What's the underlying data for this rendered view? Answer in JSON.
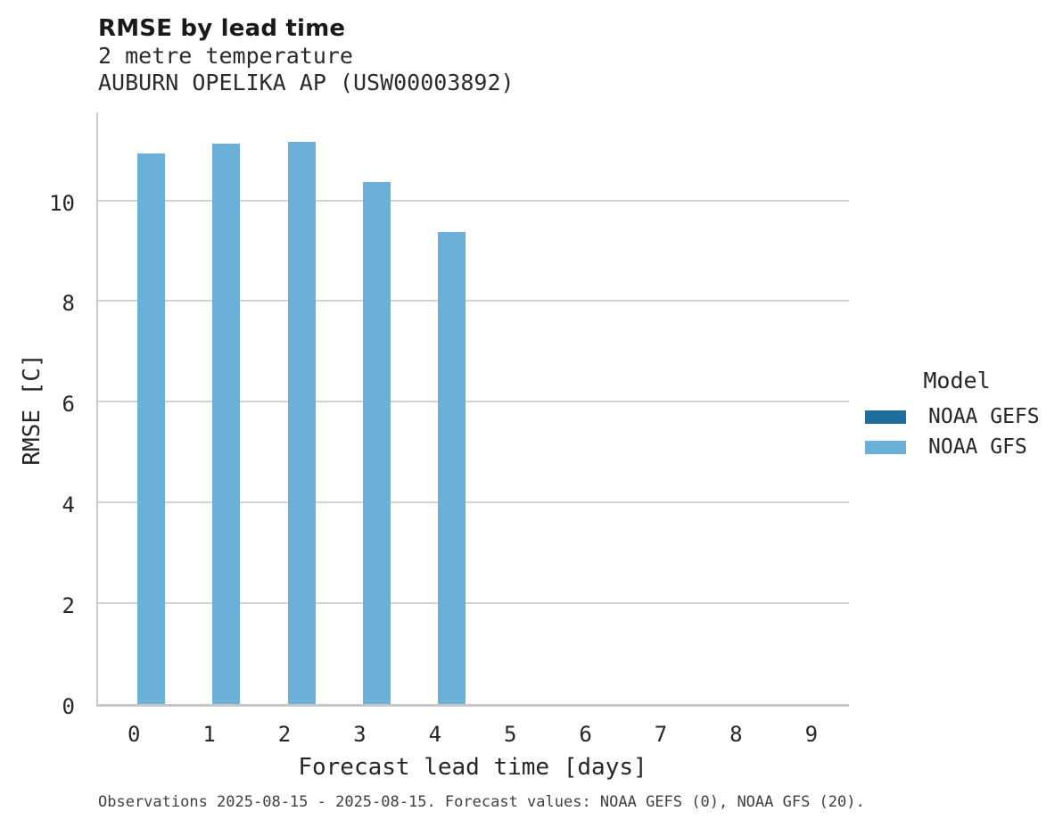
{
  "header": {
    "title": "RMSE by lead time",
    "subtitle_line1": "2 metre temperature",
    "subtitle_line2": "AUBURN OPELIKA AP (USW00003892)"
  },
  "legend": {
    "title": "Model",
    "items": [
      {
        "label": "NOAA GEFS",
        "color": "#1d6e9c"
      },
      {
        "label": "NOAA GFS",
        "color": "#6bb0d8"
      }
    ]
  },
  "footer": {
    "caption": "Observations 2025-08-15 - 2025-08-15. Forecast values: NOAA GEFS (0), NOAA GFS (20)."
  },
  "chart_data": {
    "type": "bar",
    "title": "RMSE by lead time",
    "subtitle": [
      "2 metre temperature",
      "AUBURN OPELIKA AP (USW00003892)"
    ],
    "xlabel": "Forecast lead time [days]",
    "ylabel": "RMSE [C]",
    "categories": [
      "0",
      "1",
      "2",
      "3",
      "4",
      "5",
      "6",
      "7",
      "8",
      "9"
    ],
    "series": [
      {
        "name": "NOAA GEFS",
        "color": "#1d6e9c",
        "values": [
          null,
          null,
          null,
          null,
          null,
          null,
          null,
          null,
          null,
          null
        ]
      },
      {
        "name": "NOAA GFS",
        "color": "#6bb0d8",
        "values": [
          10.93,
          11.12,
          11.16,
          10.37,
          9.37,
          null,
          null,
          null,
          null,
          null
        ]
      }
    ],
    "ylim": [
      0,
      11.8
    ],
    "yticks": [
      0,
      2,
      4,
      6,
      8,
      10
    ],
    "grid": "horizontal",
    "legend_position": "right",
    "legend_title": "Model"
  }
}
